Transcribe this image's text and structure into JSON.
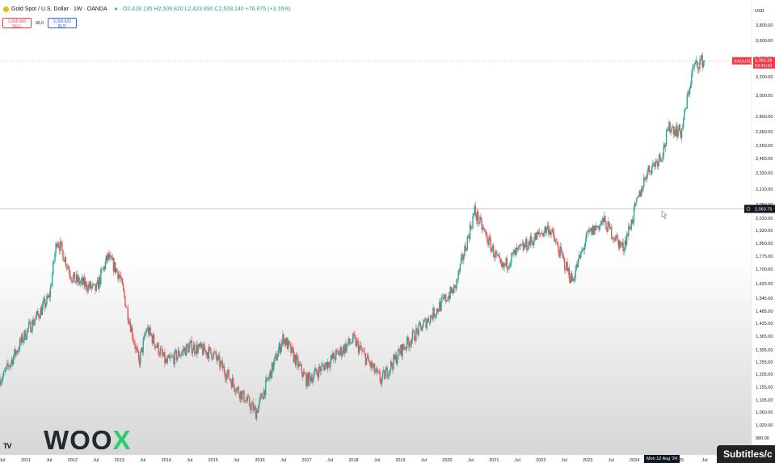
{
  "header": {
    "symbol": "Gold Spot / U.S. Dollar · 1W · OANDA",
    "ohlc": "O2,428.135 H2,509.820 L2,423.890 C2,508.140 +76.875 (+3.16%)",
    "sell_price": "3,365.960",
    "sell_label": "SELL",
    "spread": "66.0",
    "buy_price": "3,366.620",
    "buy_label": "BUY"
  },
  "price_axis": {
    "currency": "USD",
    "labels": [
      "3,800.00",
      "3,600.00",
      "3,400.00",
      "3,200.00",
      "3,000.00",
      "2,800.00",
      "2,650.00",
      "2,550.00",
      "2,450.00",
      "2,330.00",
      "2,210.00",
      "2,090.00",
      "2,010.00",
      "1,930.00",
      "1,850.00",
      "1,775.00",
      "1,700.00",
      "1,625.00",
      "1,545.00",
      "1,485.00",
      "1,425.00",
      "1,365.00",
      "1,305.00",
      "1,255.00",
      "1,205.00",
      "1,155.00",
      "1,105.00",
      "1,060.00",
      "1,020.00",
      "980.00"
    ]
  },
  "time_axis": {
    "labels": [
      "Jul",
      "2011",
      "Jul",
      "2012",
      "Jul",
      "2013",
      "Jul",
      "2014",
      "Jul",
      "2015",
      "Jul",
      "2016",
      "Jul",
      "2017",
      "Jul",
      "2018",
      "Jul",
      "2019",
      "Jul",
      "2020",
      "Jul",
      "2021",
      "Jul",
      "2022",
      "Jul",
      "2023",
      "Jul",
      "2024",
      "Jul",
      "25",
      "Jul"
    ],
    "cursor_label": "Mon 12 Aug '24"
  },
  "markers": {
    "symbol_tag": "XAUUSD",
    "last_price": "3,366.38",
    "countdown": "03:46:30",
    "crosshair_price": "2,063.75"
  },
  "colors": {
    "up": "#26a69a",
    "down": "#ef5350",
    "last_price": "#f23645",
    "crosshair": "#131722"
  },
  "branding": {
    "woo": "WOO",
    "x": "X",
    "tv": "TV"
  },
  "subtitles": "Subtitles/c",
  "chart_data": {
    "type": "candlestick",
    "title": "Gold Spot / U.S. Dollar · 1W · OANDA",
    "scale": "log",
    "ylim": [
      980,
      3800
    ],
    "x": [
      "2010-07",
      "2011-01",
      "2011-07",
      "2011-09",
      "2012-01",
      "2012-07",
      "2012-10",
      "2013-01",
      "2013-06",
      "2013-08",
      "2014-01",
      "2014-07",
      "2015-01",
      "2015-07",
      "2015-12",
      "2016-07",
      "2017-01",
      "2017-07",
      "2018-01",
      "2018-08",
      "2019-01",
      "2019-07",
      "2020-03",
      "2020-08",
      "2021-03",
      "2021-06",
      "2022-03",
      "2022-09",
      "2023-01",
      "2023-05",
      "2023-10",
      "2024-01",
      "2024-04",
      "2024-08",
      "2024-10",
      "2025-01",
      "2025-04",
      "2025-06"
    ],
    "close": [
      1190,
      1380,
      1550,
      1880,
      1650,
      1590,
      1770,
      1670,
      1250,
      1400,
      1250,
      1320,
      1290,
      1150,
      1060,
      1360,
      1180,
      1260,
      1350,
      1180,
      1300,
      1420,
      1600,
      2050,
      1700,
      1780,
      1950,
      1640,
      1900,
      1990,
      1820,
      2050,
      2330,
      2480,
      2700,
      2650,
      3300,
      3366
    ]
  }
}
